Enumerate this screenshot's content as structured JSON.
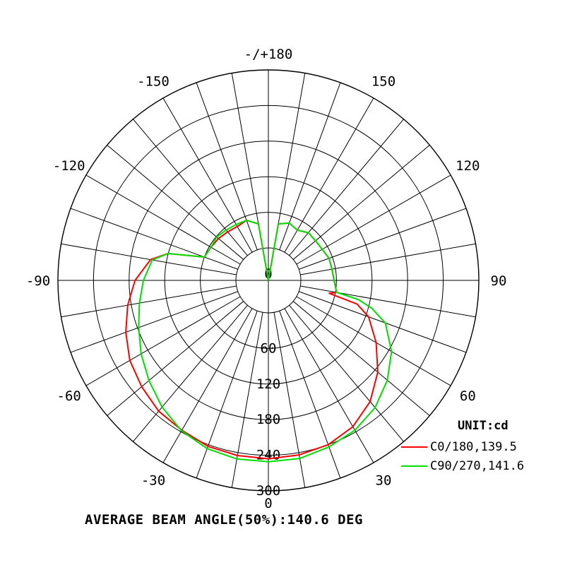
{
  "chart_data": {
    "type": "polar",
    "angle_labels": [
      {
        "angle": 180,
        "text": "-/+180"
      },
      {
        "angle": -150,
        "text": "-150"
      },
      {
        "angle": 150,
        "text": "150"
      },
      {
        "angle": -120,
        "text": "-120"
      },
      {
        "angle": 120,
        "text": "120"
      },
      {
        "angle": -90,
        "text": "-90"
      },
      {
        "angle": 90,
        "text": "90"
      },
      {
        "angle": -60,
        "text": "-60"
      },
      {
        "angle": 60,
        "text": "60"
      },
      {
        "angle": -30,
        "text": "-30"
      },
      {
        "angle": 30,
        "text": "30"
      },
      {
        "angle": 0,
        "text": "0"
      }
    ],
    "radial_ticks": [
      0,
      60,
      120,
      180,
      240,
      300
    ],
    "radial_tick_labels": [
      "0",
      "60",
      "120",
      "180",
      "240",
      "300"
    ],
    "radial_max": 300,
    "angular_grid_step": 10,
    "unit_label": "UNIT:cd",
    "series": [
      {
        "name": "C0/180,139.5",
        "color": "#ff0000",
        "points": [
          [
            -180,
            0
          ],
          [
            -170,
            42
          ],
          [
            -160,
            53
          ],
          [
            -150,
            50
          ],
          [
            -140,
            52
          ],
          [
            -130,
            55
          ],
          [
            -120,
            57
          ],
          [
            -110,
            60
          ],
          [
            -105,
            120
          ],
          [
            -100,
            147
          ],
          [
            -90,
            170
          ],
          [
            -80,
            186
          ],
          [
            -70,
            201
          ],
          [
            -60,
            215
          ],
          [
            -50,
            224
          ],
          [
            -40,
            233
          ],
          [
            -30,
            237
          ],
          [
            -20,
            243
          ],
          [
            -10,
            245
          ],
          [
            0,
            246
          ],
          [
            10,
            244
          ],
          [
            20,
            240
          ],
          [
            30,
            230
          ],
          [
            40,
            212
          ],
          [
            50,
            186
          ],
          [
            60,
            155
          ],
          [
            70,
            125
          ],
          [
            75,
            100
          ],
          [
            78,
            50
          ],
          [
            80,
            62
          ],
          [
            90,
            56
          ],
          [
            100,
            54
          ],
          [
            110,
            54
          ],
          [
            120,
            50
          ],
          [
            130,
            49
          ],
          [
            140,
            50
          ],
          [
            150,
            43
          ],
          [
            160,
            48
          ],
          [
            170,
            42
          ],
          [
            180,
            0
          ]
        ]
      },
      {
        "name": "C90/270,141.6",
        "color": "#00e000",
        "points": [
          [
            -180,
            0
          ],
          [
            -170,
            42
          ],
          [
            -160,
            53
          ],
          [
            -150,
            54
          ],
          [
            -140,
            56
          ],
          [
            -130,
            59
          ],
          [
            -120,
            57
          ],
          [
            -110,
            60
          ],
          [
            -105,
            120
          ],
          [
            -100,
            144
          ],
          [
            -90,
            156
          ],
          [
            -80,
            166
          ],
          [
            -70,
            178
          ],
          [
            -60,
            193
          ],
          [
            -50,
            208
          ],
          [
            -40,
            224
          ],
          [
            -30,
            238
          ],
          [
            -20,
            247
          ],
          [
            -10,
            251
          ],
          [
            0,
            251
          ],
          [
            10,
            250
          ],
          [
            20,
            244
          ],
          [
            30,
            237
          ],
          [
            40,
            225
          ],
          [
            50,
            207
          ],
          [
            60,
            185
          ],
          [
            70,
            155
          ],
          [
            75,
            125
          ],
          [
            78,
            100
          ],
          [
            80,
            62
          ],
          [
            90,
            56
          ],
          [
            100,
            54
          ],
          [
            110,
            54
          ],
          [
            120,
            50
          ],
          [
            130,
            49
          ],
          [
            140,
            50
          ],
          [
            150,
            43
          ],
          [
            160,
            48
          ],
          [
            170,
            42
          ],
          [
            180,
            0
          ]
        ]
      }
    ],
    "legend_placement": "bottom-right",
    "beam_angle_text": "AVERAGE BEAM ANGLE(50%):140.6 DEG"
  }
}
